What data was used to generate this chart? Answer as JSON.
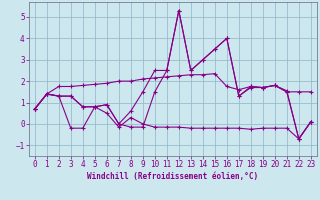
{
  "xlabel": "Windchill (Refroidissement éolien,°C)",
  "bg_color": "#cce8ee",
  "line_color": "#880088",
  "grid_color": "#99bbcc",
  "axis_color": "#666688",
  "xlim": [
    -0.5,
    23.5
  ],
  "ylim": [
    -1.5,
    5.7
  ],
  "yticks": [
    -1,
    0,
    1,
    2,
    3,
    4,
    5
  ],
  "xticks": [
    0,
    1,
    2,
    3,
    4,
    5,
    6,
    7,
    8,
    9,
    10,
    11,
    12,
    13,
    14,
    15,
    16,
    17,
    18,
    19,
    20,
    21,
    22,
    23
  ],
  "line1_x": [
    0,
    1,
    2,
    3,
    4,
    5,
    6,
    7,
    8,
    9,
    10,
    11,
    12,
    13,
    14,
    15,
    16,
    17,
    18,
    19,
    20,
    21,
    22,
    23
  ],
  "line1_y": [
    0.7,
    1.4,
    1.3,
    1.3,
    0.8,
    0.8,
    0.9,
    0.0,
    0.6,
    1.5,
    2.5,
    2.5,
    5.3,
    2.5,
    3.0,
    3.5,
    4.0,
    1.3,
    1.75,
    1.7,
    1.8,
    1.55,
    -0.7,
    0.1
  ],
  "line2_x": [
    0,
    1,
    2,
    3,
    4,
    5,
    6,
    7,
    8,
    9,
    10,
    11,
    12,
    13,
    14,
    15,
    16,
    17,
    18,
    19,
    20,
    21,
    22,
    23
  ],
  "line2_y": [
    0.7,
    1.4,
    1.3,
    -0.2,
    -0.2,
    0.8,
    0.5,
    -0.15,
    0.3,
    0.0,
    -0.15,
    -0.15,
    -0.15,
    -0.2,
    -0.2,
    -0.2,
    -0.2,
    -0.2,
    -0.25,
    -0.2,
    -0.2,
    -0.2,
    -0.7,
    0.1
  ],
  "line3_x": [
    0,
    1,
    2,
    3,
    4,
    5,
    6,
    7,
    8,
    9,
    10,
    11,
    12,
    13,
    14,
    15,
    16,
    17,
    18,
    19,
    20,
    21,
    22,
    23
  ],
  "line3_y": [
    0.7,
    1.4,
    1.75,
    1.75,
    1.8,
    1.85,
    1.9,
    2.0,
    2.0,
    2.1,
    2.15,
    2.2,
    2.25,
    2.3,
    2.3,
    2.35,
    1.75,
    1.6,
    1.75,
    1.7,
    1.8,
    1.5,
    1.5,
    1.5
  ],
  "line4_x": [
    0,
    1,
    2,
    3,
    4,
    5,
    6,
    7,
    8,
    9,
    10,
    11,
    12,
    13,
    14,
    15,
    16,
    17,
    18,
    19,
    20,
    21,
    22,
    23
  ],
  "line4_y": [
    0.7,
    1.4,
    1.3,
    1.3,
    0.8,
    0.8,
    0.9,
    0.0,
    -0.15,
    -0.15,
    1.5,
    2.5,
    5.3,
    2.5,
    3.0,
    3.5,
    4.0,
    1.3,
    1.7,
    1.7,
    1.8,
    1.5,
    -0.7,
    0.1
  ]
}
